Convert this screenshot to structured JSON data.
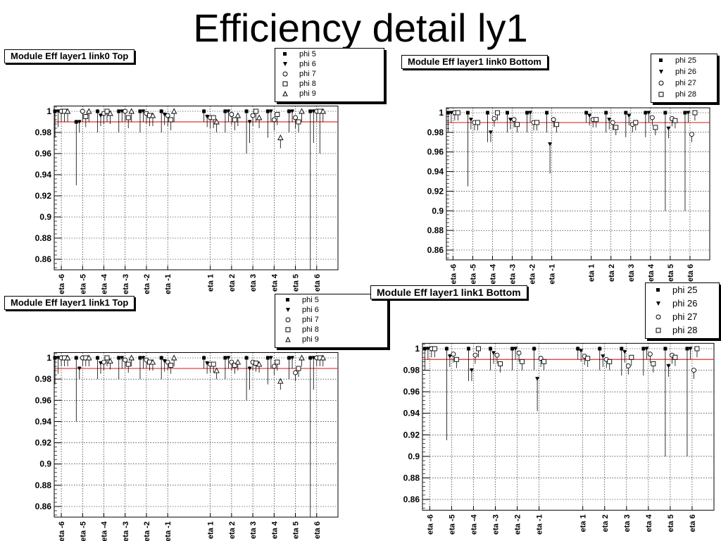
{
  "page": {
    "title": "Efficiency detail ly1"
  },
  "chart_data": [
    {
      "type": "scatter",
      "title": "Module Eff layer1 link0 Top",
      "xlabel": "",
      "ylabel": "",
      "ylim": [
        0.85,
        1.005
      ],
      "yticks": [
        1,
        0.98,
        0.96,
        0.94,
        0.92,
        0.9,
        0.88,
        0.86
      ],
      "ytick_labels": [
        "1",
        "0.98",
        "0.96",
        "0.94",
        "0.92",
        "0.9",
        "0.88",
        "0.86"
      ],
      "categories": [
        "eta -6",
        "eta -5",
        "eta -4",
        "eta -3",
        "eta -2",
        "eta -1",
        "eta 1",
        "eta 2",
        "eta 3",
        "eta 4",
        "eta 5",
        "eta 6"
      ],
      "reference_line": 0.99,
      "grid": true,
      "legend_position": "top-right",
      "series": [
        {
          "name": "phi 5",
          "marker": "square-filled",
          "values": [
            1.0,
            0.99,
            1.0,
            1.0,
            1.0,
            1.0,
            1.0,
            1.0,
            1.0,
            1.0,
            1.0,
            1.0
          ],
          "err_low": [
            0.025,
            0.06,
            0.02,
            0.02,
            0.02,
            0.02,
            0.01,
            0.02,
            0.04,
            0.025,
            0.02,
            0.2
          ]
        },
        {
          "name": "phi 6",
          "marker": "triangle-down-filled",
          "values": [
            1.0,
            0.99,
            0.996,
            1.0,
            1.0,
            0.997,
            0.995,
            1.0,
            0.99,
            1.0,
            1.0,
            1.0
          ],
          "err_low": [
            0.015,
            0.01,
            0.01,
            0.01,
            0.01,
            0.01,
            0.01,
            0.01,
            0.02,
            0.01,
            0.01,
            0.03
          ]
        },
        {
          "name": "phi 7",
          "marker": "circle-open",
          "values": [
            1.0,
            1.0,
            0.998,
            1.0,
            0.998,
            0.996,
            0.994,
            0.997,
            0.996,
            0.992,
            0.994,
            1.0
          ],
          "err_low": [
            0.01,
            0.01,
            0.01,
            0.01,
            0.01,
            0.01,
            0.01,
            0.01,
            0.01,
            0.01,
            0.01,
            0.01
          ]
        },
        {
          "name": "phi 8",
          "marker": "square-open",
          "values": [
            1.0,
            0.995,
            1.0,
            0.994,
            0.996,
            0.992,
            0.994,
            0.992,
            1.0,
            0.997,
            0.99,
            1.0
          ],
          "err_low": [
            0.01,
            0.01,
            0.01,
            0.01,
            0.01,
            0.01,
            0.01,
            0.01,
            0.01,
            0.01,
            0.01,
            0.04
          ]
        },
        {
          "name": "phi 9",
          "marker": "triangle-up-open",
          "values": [
            1.0,
            1.0,
            0.998,
            1.0,
            0.996,
            1.0,
            0.99,
            0.996,
            0.994,
            0.975,
            1.0,
            1.0
          ],
          "err_low": [
            0.01,
            0.01,
            0.01,
            0.01,
            0.01,
            0.01,
            0.01,
            0.01,
            0.01,
            0.01,
            0.01,
            0.01
          ]
        }
      ]
    },
    {
      "type": "scatter",
      "title": "Module Eff layer1 link0 Bottom",
      "xlabel": "",
      "ylabel": "",
      "ylim": [
        0.85,
        1.005
      ],
      "yticks": [
        1,
        0.98,
        0.96,
        0.94,
        0.92,
        0.9,
        0.88,
        0.86
      ],
      "ytick_labels": [
        "1",
        "0.98",
        "0.96",
        "0.94",
        "0.92",
        "0.9",
        "0.88",
        "0.86"
      ],
      "categories": [
        "eta -6",
        "eta -5",
        "eta -4",
        "eta -3",
        "eta -2",
        "eta -1",
        "eta 1",
        "eta 2",
        "eta 3",
        "eta 4",
        "eta 5",
        "eta 6"
      ],
      "reference_line": 0.99,
      "grid": true,
      "legend_position": "top-right",
      "series": [
        {
          "name": "phi 25",
          "marker": "square-filled",
          "values": [
            1.0,
            1.0,
            1.0,
            1.0,
            1.0,
            1.0,
            1.0,
            1.0,
            1.0,
            1.0,
            1.0,
            1.0
          ],
          "err_low": [
            0.02,
            0.075,
            0.03,
            0.02,
            0.02,
            0.02,
            0.01,
            0.02,
            0.025,
            0.025,
            0.1,
            0.1
          ]
        },
        {
          "name": "phi 26",
          "marker": "triangle-down-filled",
          "values": [
            1.0,
            0.993,
            0.98,
            0.993,
            1.0,
            0.968,
            0.997,
            0.993,
            0.997,
            1.0,
            0.984,
            1.0
          ],
          "err_low": [
            0.01,
            0.01,
            0.01,
            0.01,
            0.01,
            0.03,
            0.01,
            0.01,
            0.01,
            0.01,
            0.01,
            0.01
          ]
        },
        {
          "name": "phi 27",
          "marker": "circle-open",
          "values": [
            1.0,
            0.99,
            0.994,
            0.993,
            0.99,
            0.993,
            0.993,
            0.99,
            0.988,
            0.995,
            0.994,
            0.978
          ]
        },
        {
          "name": "phi 28",
          "marker": "square-open",
          "values": [
            1.0,
            0.99,
            1.0,
            0.988,
            0.99,
            0.988,
            0.993,
            0.985,
            0.99,
            0.985,
            0.992,
            1.0
          ]
        }
      ]
    },
    {
      "type": "scatter",
      "title": "Module Eff layer1 link1 Top",
      "xlabel": "",
      "ylabel": "",
      "ylim": [
        0.85,
        1.005
      ],
      "yticks": [
        1,
        0.98,
        0.96,
        0.94,
        0.92,
        0.9,
        0.88,
        0.86
      ],
      "ytick_labels": [
        "1",
        "0.98",
        "0.96",
        "0.94",
        "0.92",
        "0.9",
        "0.88",
        "0.86"
      ],
      "categories": [
        "eta -6",
        "eta -5",
        "eta -4",
        "eta -3",
        "eta -2",
        "eta -1",
        "eta 1",
        "eta 2",
        "eta 3",
        "eta 4",
        "eta 5",
        "eta 6"
      ],
      "reference_line": 0.99,
      "grid": true,
      "legend_position": "top-right",
      "series": [
        {
          "name": "phi 5",
          "marker": "square-filled",
          "values": [
            1.0,
            1.0,
            1.0,
            1.0,
            1.0,
            1.0,
            1.0,
            1.0,
            1.0,
            1.0,
            1.0,
            1.0
          ],
          "err_low": [
            0.025,
            0.06,
            0.02,
            0.02,
            0.02,
            0.02,
            0.01,
            0.02,
            0.04,
            0.025,
            0.02,
            0.2
          ]
        },
        {
          "name": "phi 6",
          "marker": "triangle-down-filled",
          "values": [
            1.0,
            0.99,
            0.995,
            1.0,
            1.0,
            0.997,
            0.995,
            1.0,
            0.99,
            1.0,
            1.0,
            1.0
          ],
          "err_low": [
            0.015,
            0.01,
            0.01,
            0.01,
            0.01,
            0.01,
            0.01,
            0.01,
            0.02,
            0.01,
            0.01,
            0.03
          ]
        },
        {
          "name": "phi 7",
          "marker": "circle-open",
          "values": [
            1.0,
            1.0,
            0.996,
            0.998,
            0.998,
            0.996,
            0.994,
            0.996,
            0.996,
            0.992,
            0.986,
            1.0
          ]
        },
        {
          "name": "phi 8",
          "marker": "square-open",
          "values": [
            1.0,
            1.0,
            1.0,
            0.994,
            0.996,
            0.993,
            0.994,
            0.993,
            0.995,
            0.996,
            0.99,
            1.0
          ]
        },
        {
          "name": "phi 9",
          "marker": "triangle-up-open",
          "values": [
            1.0,
            1.0,
            0.997,
            1.0,
            0.996,
            1.0,
            0.988,
            0.996,
            0.994,
            0.978,
            1.0,
            1.0
          ]
        }
      ]
    },
    {
      "type": "scatter",
      "title": "Module Eff layer1 link1 Bottom",
      "xlabel": "",
      "ylabel": "",
      "ylim": [
        0.85,
        1.005
      ],
      "yticks": [
        1,
        0.98,
        0.96,
        0.94,
        0.92,
        0.9,
        0.88,
        0.86
      ],
      "ytick_labels": [
        "1",
        "0.98",
        "0.96",
        "0.94",
        "0.92",
        "0.9",
        "0.88",
        "0.86"
      ],
      "categories": [
        "eta -6",
        "eta -5",
        "eta -4",
        "eta -3",
        "eta -2",
        "eta -1",
        "eta 1",
        "eta 2",
        "eta 3",
        "eta 4",
        "eta 5",
        "eta 6"
      ],
      "reference_line": 0.99,
      "grid": true,
      "legend_position": "top-right",
      "series": [
        {
          "name": "phi 25",
          "marker": "square-filled",
          "values": [
            1.0,
            1.0,
            1.0,
            1.0,
            1.0,
            1.0,
            1.0,
            1.0,
            1.0,
            1.0,
            1.0,
            1.0
          ],
          "err_low": [
            0.02,
            0.085,
            0.03,
            0.02,
            0.02,
            0.02,
            0.01,
            0.02,
            0.025,
            0.025,
            0.1,
            0.1
          ]
        },
        {
          "name": "phi 26",
          "marker": "triangle-down-filled",
          "values": [
            1.0,
            0.993,
            0.98,
            0.996,
            1.0,
            0.972,
            0.998,
            0.993,
            0.997,
            1.0,
            0.984,
            1.0
          ],
          "err_low": [
            0.01,
            0.01,
            0.01,
            0.01,
            0.01,
            0.03,
            0.01,
            0.01,
            0.01,
            0.01,
            0.01,
            0.01
          ]
        },
        {
          "name": "phi 27",
          "marker": "circle-open",
          "values": [
            1.0,
            0.995,
            0.994,
            0.994,
            0.996,
            0.991,
            0.993,
            0.99,
            0.984,
            0.995,
            0.994,
            0.98
          ]
        },
        {
          "name": "phi 28",
          "marker": "square-open",
          "values": [
            1.0,
            0.99,
            1.0,
            0.986,
            0.988,
            0.988,
            0.991,
            0.988,
            0.992,
            0.986,
            0.992,
            1.0
          ]
        }
      ]
    }
  ]
}
